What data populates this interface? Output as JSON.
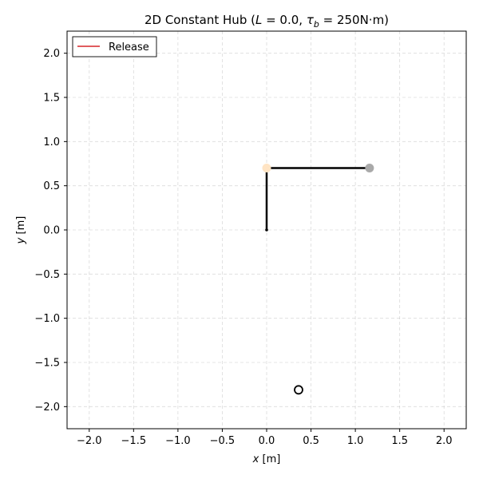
{
  "chart_data": {
    "type": "line",
    "title_main": "2D Constant Hub (",
    "title_L": "L",
    "title_L_val": " = 0.0, ",
    "title_tau": "τ",
    "title_tau_sub": "b",
    "title_tau_val": " = 250N·m)",
    "xlabel_var": "x",
    "xlabel_unit": " [m]",
    "ylabel_var": "y",
    "ylabel_unit": " [m]",
    "xlim": [
      -2.25,
      2.25
    ],
    "ylim": [
      -2.25,
      2.25
    ],
    "xticks": [
      -2.0,
      -1.5,
      -1.0,
      -0.5,
      0.0,
      0.5,
      1.0,
      1.5,
      2.0
    ],
    "yticks": [
      -2.0,
      -1.5,
      -1.0,
      -0.5,
      0.0,
      0.5,
      1.0,
      1.5,
      2.0
    ],
    "xtick_labels": [
      "−2.0",
      "−1.5",
      "−1.0",
      "−0.5",
      "0.0",
      "0.5",
      "1.0",
      "1.5",
      "2.0"
    ],
    "ytick_labels": [
      "−2.0",
      "−1.5",
      "−1.0",
      "−0.5",
      "0.0",
      "0.5",
      "1.0",
      "1.5",
      "2.0"
    ],
    "grid": true,
    "legend": {
      "position": "top-left",
      "entries": [
        {
          "label": "Release",
          "color": "#d62728"
        }
      ]
    },
    "arm": {
      "segments": [
        {
          "points": [
            [
              0.0,
              0.0
            ],
            [
              0.0,
              0.7
            ]
          ],
          "color": "#000000"
        },
        {
          "points": [
            [
              0.0,
              0.7
            ],
            [
              1.16,
              0.7
            ]
          ],
          "color": "#000000"
        }
      ]
    },
    "markers": [
      {
        "name": "hub-marker",
        "x": 0.0,
        "y": 0.0,
        "color": "#000000",
        "style": "filled-small"
      },
      {
        "name": "elbow-marker",
        "x": 0.0,
        "y": 0.7,
        "color": "#ffe4c4",
        "style": "filled"
      },
      {
        "name": "end-marker",
        "x": 1.16,
        "y": 0.7,
        "color": "#a9a9a9",
        "style": "filled"
      },
      {
        "name": "target-marker",
        "x": 0.36,
        "y": -1.81,
        "color": "#000000",
        "style": "hollow"
      }
    ]
  }
}
